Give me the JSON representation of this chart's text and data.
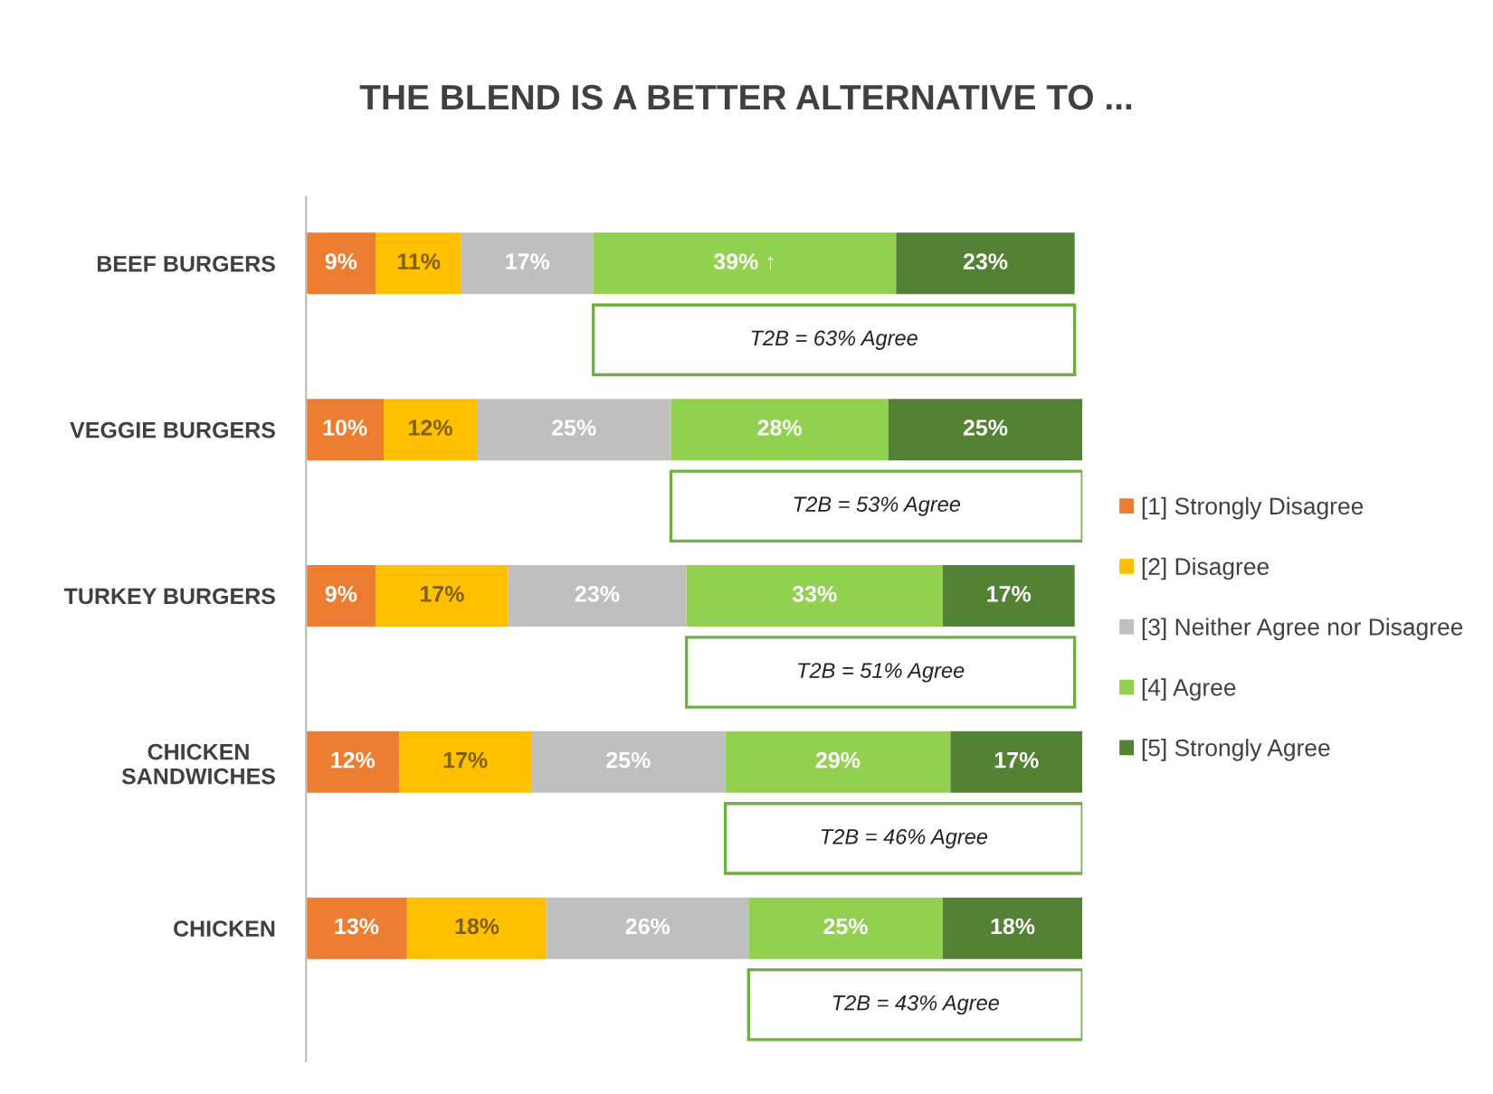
{
  "chart_data": {
    "type": "bar",
    "orientation": "horizontal",
    "stacked": true,
    "title": "THE BLEND IS A BETTER ALTERNATIVE TO ...",
    "categories": [
      "BEEF BURGERS",
      "VEGGIE BURGERS",
      "TURKEY BURGERS",
      "CHICKEN\nSANDWICHES",
      "CHICKEN"
    ],
    "series": [
      {
        "name": "[1] Strongly Disagree",
        "color": "#ed7d31",
        "values": [
          9,
          10,
          9,
          12,
          13
        ],
        "value_labels": [
          "9%",
          "10%",
          "9%",
          "12%",
          "13%"
        ]
      },
      {
        "name": "[2] Disagree",
        "color": "#ffc000",
        "values": [
          11,
          12,
          17,
          17,
          18
        ],
        "value_labels": [
          "11%",
          "12%",
          "17%",
          "17%",
          "18%"
        ]
      },
      {
        "name": "[3] Neither Agree nor Disagree",
        "color": "#bfbfbf",
        "values": [
          17,
          25,
          23,
          25,
          26
        ],
        "value_labels": [
          "17%",
          "25%",
          "23%",
          "25%",
          "26%"
        ]
      },
      {
        "name": "[4] Agree",
        "color": "#92d050",
        "values": [
          39,
          28,
          33,
          29,
          25
        ],
        "value_labels": [
          "39% ↑",
          "28%",
          "33%",
          "29%",
          "25%"
        ]
      },
      {
        "name": "[5] Strongly Agree",
        "color": "#548235",
        "values": [
          23,
          25,
          17,
          17,
          18
        ],
        "value_labels": [
          "23%",
          "25%",
          "17%",
          "17%",
          "18%"
        ]
      }
    ],
    "annotations": [
      "T2B = 63% Agree",
      "T2B = 53% Agree",
      "T2B = 51% Agree",
      "T2B = 46% Agree",
      "T2B = 43% Agree"
    ],
    "legend": "right",
    "grid": false,
    "tick_labels": "y"
  }
}
